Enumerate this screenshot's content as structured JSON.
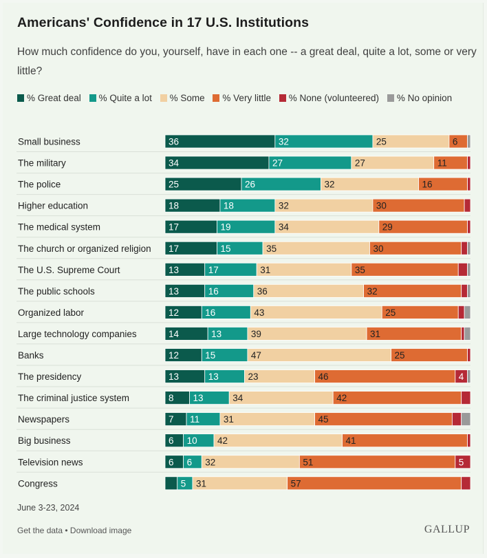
{
  "chart_data": {
    "type": "bar",
    "orientation": "horizontal",
    "stacked": true,
    "title": "Americans' Confidence in 17 U.S. Institutions",
    "subtitle": "How much confidence do you, yourself, have in each one -- a great deal, quite a lot, some or very little?",
    "categories": [
      "Small business",
      "The military",
      "The police",
      "Higher education",
      "The medical system",
      "The church or organized religion",
      "The U.S. Supreme Court",
      "The public schools",
      "Organized labor",
      "Large technology companies",
      "Banks",
      "The presidency",
      "The criminal justice system",
      "Newspapers",
      "Big business",
      "Television news",
      "Congress"
    ],
    "series": [
      {
        "name": "% Great deal",
        "color": "#0b5a4c",
        "label_color": "#ffffff",
        "values": [
          36,
          34,
          25,
          18,
          17,
          17,
          13,
          13,
          12,
          14,
          12,
          13,
          8,
          7,
          6,
          6,
          4
        ]
      },
      {
        "name": "% Quite a lot",
        "color": "#13998a",
        "label_color": "#ffffff",
        "values": [
          32,
          27,
          26,
          18,
          19,
          15,
          17,
          16,
          16,
          13,
          15,
          13,
          13,
          11,
          10,
          6,
          5
        ]
      },
      {
        "name": "% Some",
        "color": "#f1d0a2",
        "label_color": "#222222",
        "values": [
          25,
          27,
          32,
          32,
          34,
          35,
          31,
          36,
          43,
          39,
          47,
          23,
          34,
          31,
          42,
          32,
          31
        ]
      },
      {
        "name": "% Very little",
        "color": "#de6b33",
        "label_color": "#222222",
        "values": [
          6,
          11,
          16,
          30,
          29,
          30,
          35,
          32,
          25,
          31,
          25,
          46,
          42,
          45,
          41,
          51,
          57
        ]
      },
      {
        "name": "% None (volunteered)",
        "color": "#b52a36",
        "label_color": "#ffffff",
        "values": [
          0,
          1,
          1,
          2,
          1,
          2,
          3,
          2,
          2,
          1,
          1,
          4,
          3,
          3,
          1,
          5,
          3
        ]
      },
      {
        "name": "% No opinion",
        "color": "#9a9a9a",
        "label_color": "#ffffff",
        "values": [
          1,
          0,
          0,
          0,
          0,
          1,
          1,
          1,
          2,
          2,
          0,
          1,
          0,
          3,
          0,
          0,
          0
        ]
      }
    ],
    "label_min_value": 4,
    "hidden_labels": [
      [
        16,
        0
      ]
    ],
    "xlim": [
      0,
      100
    ]
  },
  "footer": {
    "date": "June 3-23, 2024",
    "get_data": "Get the data",
    "separator": " • ",
    "download": "Download image",
    "brand": "GALLUP"
  }
}
